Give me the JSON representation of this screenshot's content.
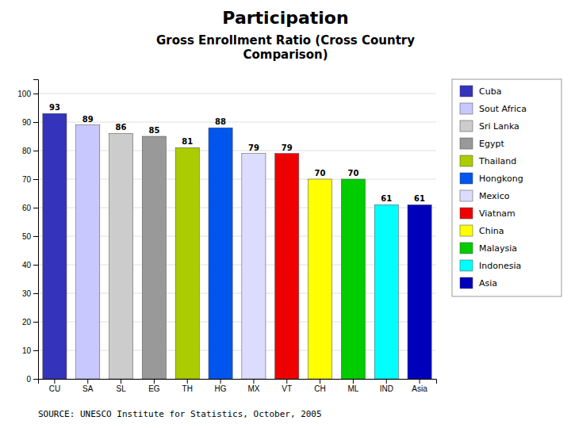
{
  "chart_data": {
    "type": "bar",
    "title": "Participation",
    "subtitle": "Gross Enrollment Ratio (Cross Country\nComparison)",
    "categories": [
      "CU",
      "SA",
      "SL",
      "EG",
      "TH",
      "HG",
      "MX",
      "VT",
      "CH",
      "ML",
      "IND",
      "Asia"
    ],
    "values": [
      93,
      89,
      86,
      85,
      81,
      88,
      79,
      79,
      70,
      70,
      61,
      61
    ],
    "colors": [
      "#3333bb",
      "#c8c8ff",
      "#cccccc",
      "#999999",
      "#aacc00",
      "#0055ee",
      "#dcdcff",
      "#ee0000",
      "#ffff00",
      "#00cc00",
      "#00ffff",
      "#0000bb"
    ],
    "legend_labels": [
      "Cuba",
      "Sout Africa",
      "Sri Lanka",
      "Egypt",
      "Thailand",
      "Hongkong",
      "Mexico",
      "Viatnam",
      "China",
      "Malaysia",
      "Indonesia",
      "Asia"
    ],
    "legend": "right",
    "ylim": [
      0,
      105
    ],
    "yticks": [
      0,
      10,
      20,
      30,
      40,
      50,
      60,
      70,
      80,
      90,
      100
    ],
    "grid": true,
    "data_labels": true,
    "annotations": [
      "SOURCE:  UNESCO Institute for Statistics, October, 2005"
    ]
  }
}
